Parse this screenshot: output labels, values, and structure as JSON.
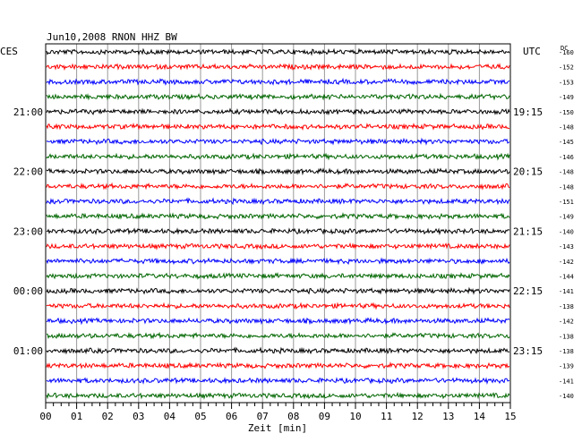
{
  "chart_data": {
    "type": "line",
    "title": "Jun10,2008   RNON HHZ BW",
    "left_header": "CES",
    "right_header": "UTC",
    "dc_header": "DC",
    "xlabel": "Zeit [min]",
    "xlim": [
      0,
      15
    ],
    "x_ticks": [
      "00",
      "01",
      "02",
      "03",
      "04",
      "05",
      "06",
      "07",
      "08",
      "09",
      "10",
      "11",
      "12",
      "13",
      "14",
      "15"
    ],
    "trace_colors": [
      "#000000",
      "#ff0000",
      "#0000ff",
      "#006600"
    ],
    "traces": [
      {
        "left": "",
        "right": "",
        "dc": "-160"
      },
      {
        "left": "",
        "right": "",
        "dc": "-152"
      },
      {
        "left": "",
        "right": "",
        "dc": "-153"
      },
      {
        "left": "",
        "right": "",
        "dc": "-149"
      },
      {
        "left": "21:00",
        "right": "19:15",
        "dc": "-150"
      },
      {
        "left": "",
        "right": "",
        "dc": "-148"
      },
      {
        "left": "",
        "right": "",
        "dc": "-145"
      },
      {
        "left": "",
        "right": "",
        "dc": "-146"
      },
      {
        "left": "22:00",
        "right": "20:15",
        "dc": "-148"
      },
      {
        "left": "",
        "right": "",
        "dc": "-148"
      },
      {
        "left": "",
        "right": "",
        "dc": "-151"
      },
      {
        "left": "",
        "right": "",
        "dc": "-149"
      },
      {
        "left": "23:00",
        "right": "21:15",
        "dc": "-140"
      },
      {
        "left": "",
        "right": "",
        "dc": "-143"
      },
      {
        "left": "",
        "right": "",
        "dc": "-142"
      },
      {
        "left": "",
        "right": "",
        "dc": "-144"
      },
      {
        "left": "00:00",
        "right": "22:15",
        "dc": "-141"
      },
      {
        "left": "",
        "right": "",
        "dc": "-138"
      },
      {
        "left": "",
        "right": "",
        "dc": "-142"
      },
      {
        "left": "",
        "right": "",
        "dc": "-138"
      },
      {
        "left": "01:00",
        "right": "23:15",
        "dc": "-138"
      },
      {
        "left": "",
        "right": "",
        "dc": "-139"
      },
      {
        "left": "",
        "right": "",
        "dc": "-141"
      },
      {
        "left": "",
        "right": "",
        "dc": "-140"
      }
    ],
    "grid": true
  }
}
